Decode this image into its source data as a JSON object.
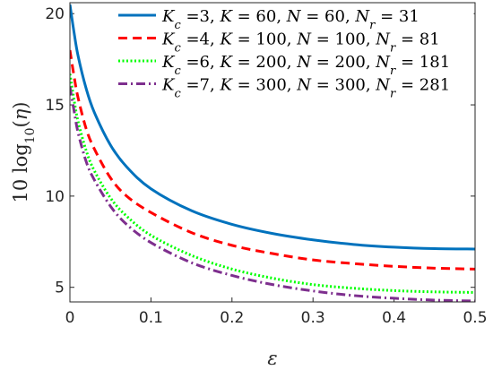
{
  "chart_data": {
    "type": "line",
    "xlabel": "ε",
    "ylabel": "10 log10(η)",
    "xlim": [
      0,
      0.5
    ],
    "ylim": [
      4.2,
      20.6
    ],
    "xticks": [
      0,
      0.1,
      0.2,
      0.3,
      0.4,
      0.5
    ],
    "xtick_labels": [
      "0",
      "0.1",
      "0.2",
      "0.3",
      "0.4",
      "0.5"
    ],
    "yticks": [
      5,
      10,
      15,
      20
    ],
    "ytick_labels": [
      "5",
      "10",
      "15",
      "20"
    ],
    "grid": false,
    "legend_position": "top-right",
    "series": [
      {
        "name": "Kc =3, K = 60, N = 60, Nr = 31",
        "legend": {
          "kc": "3",
          "k": "60",
          "n": "60",
          "nr": "31"
        },
        "color": "#0072BD",
        "style": "solid",
        "x": [
          0,
          0.005,
          0.01,
          0.02,
          0.03,
          0.05,
          0.07,
          0.1,
          0.15,
          0.2,
          0.25,
          0.3,
          0.35,
          0.4,
          0.45,
          0.5
        ],
        "y": [
          20.5,
          19.0,
          17.7,
          15.9,
          14.6,
          12.8,
          11.6,
          10.4,
          9.2,
          8.45,
          7.95,
          7.6,
          7.35,
          7.2,
          7.12,
          7.1
        ]
      },
      {
        "name": "Kc =4, K =100, N =100, Nr = 81",
        "legend": {
          "kc": "4",
          "k": "100",
          "n": "100",
          "nr": "81"
        },
        "color": "#FF0000",
        "style": "dashed",
        "x": [
          0,
          0.005,
          0.01,
          0.02,
          0.03,
          0.05,
          0.07,
          0.1,
          0.15,
          0.2,
          0.25,
          0.3,
          0.35,
          0.4,
          0.45,
          0.5
        ],
        "y": [
          18.0,
          16.6,
          15.4,
          13.7,
          12.6,
          11.0,
          10.0,
          9.1,
          8.0,
          7.3,
          6.85,
          6.5,
          6.3,
          6.15,
          6.05,
          6.0
        ]
      },
      {
        "name": "Kc =6, K =200, N =200, Nr =181",
        "legend": {
          "kc": "6",
          "k": "200",
          "n": "200",
          "nr": "181"
        },
        "color": "#00FF00",
        "style": "dotted",
        "x": [
          0,
          0.005,
          0.01,
          0.02,
          0.03,
          0.05,
          0.07,
          0.1,
          0.15,
          0.2,
          0.25,
          0.3,
          0.35,
          0.4,
          0.45,
          0.5
        ],
        "y": [
          16.7,
          15.3,
          14.1,
          12.5,
          11.4,
          9.9,
          8.9,
          7.85,
          6.75,
          6.0,
          5.5,
          5.15,
          4.95,
          4.82,
          4.75,
          4.72
        ]
      },
      {
        "name": "Kc =7, K =300, N =300, Nr =281",
        "legend": {
          "kc": "7",
          "k": "300",
          "n": "300",
          "nr": "281"
        },
        "color": "#7E2F8E",
        "style": "dashdot",
        "x": [
          0,
          0.005,
          0.01,
          0.02,
          0.03,
          0.05,
          0.07,
          0.1,
          0.15,
          0.2,
          0.25,
          0.3,
          0.35,
          0.4,
          0.45,
          0.5
        ],
        "y": [
          16.0,
          14.7,
          13.5,
          11.9,
          10.9,
          9.45,
          8.45,
          7.45,
          6.35,
          5.65,
          5.15,
          4.8,
          4.55,
          4.4,
          4.3,
          4.25
        ]
      }
    ]
  }
}
